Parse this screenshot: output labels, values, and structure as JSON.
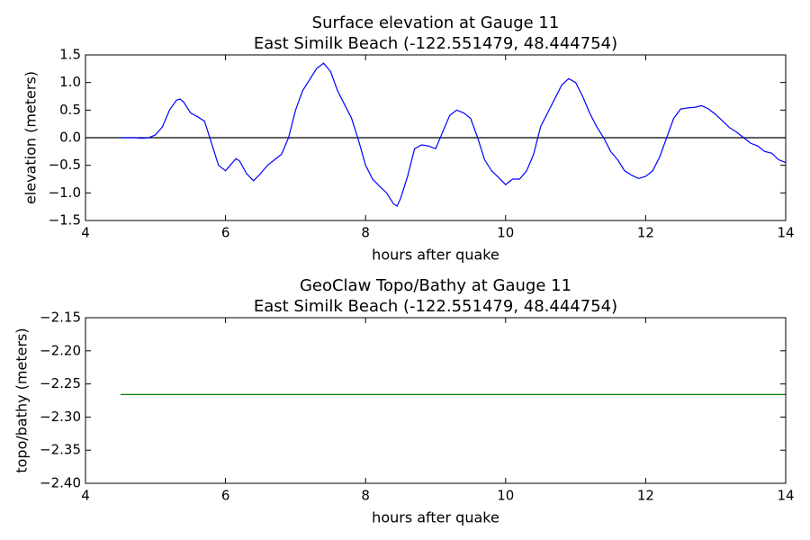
{
  "chart_data": [
    {
      "type": "line",
      "title": "Surface elevation at Gauge 11",
      "subtitle": "East Similk Beach  (-122.551479, 48.444754)",
      "xlabel": "hours after quake",
      "ylabel": "elevation (meters)",
      "color": "#0000ff",
      "hline": 0,
      "hline_color": "#000000",
      "xlim": [
        4,
        14
      ],
      "xticks": [
        4,
        6,
        8,
        10,
        12,
        14
      ],
      "ylim": [
        -1.5,
        1.5
      ],
      "yticks": [
        {
          "value": -1.5,
          "label": "−1.5"
        },
        {
          "value": -1.0,
          "label": "−1.0"
        },
        {
          "value": -0.5,
          "label": "−0.5"
        },
        {
          "value": 0,
          "label": "0.0"
        },
        0.5,
        {
          "value": 1,
          "label": "1.0"
        },
        1.5
      ],
      "x": [
        4.5,
        4.6,
        4.7,
        4.8,
        4.9,
        5.0,
        5.1,
        5.2,
        5.3,
        5.35,
        5.4,
        5.5,
        5.6,
        5.7,
        5.8,
        5.9,
        6.0,
        6.1,
        6.15,
        6.2,
        6.3,
        6.4,
        6.5,
        6.6,
        6.7,
        6.8,
        6.9,
        7.0,
        7.1,
        7.2,
        7.3,
        7.4,
        7.5,
        7.6,
        7.7,
        7.8,
        7.9,
        8.0,
        8.1,
        8.2,
        8.3,
        8.4,
        8.45,
        8.5,
        8.6,
        8.7,
        8.8,
        8.9,
        9.0,
        9.1,
        9.2,
        9.3,
        9.4,
        9.5,
        9.6,
        9.7,
        9.8,
        9.9,
        10.0,
        10.1,
        10.2,
        10.3,
        10.4,
        10.5,
        10.6,
        10.7,
        10.8,
        10.9,
        11.0,
        11.1,
        11.2,
        11.3,
        11.4,
        11.5,
        11.6,
        11.7,
        11.8,
        11.9,
        12.0,
        12.1,
        12.2,
        12.3,
        12.4,
        12.5,
        12.6,
        12.7,
        12.8,
        12.9,
        13.0,
        13.1,
        13.2,
        13.3,
        13.4,
        13.5,
        13.6,
        13.7,
        13.8,
        13.9,
        14.0
      ],
      "values": [
        0,
        0,
        0,
        -0.01,
        0,
        0.05,
        0.2,
        0.5,
        0.68,
        0.7,
        0.65,
        0.45,
        0.38,
        0.3,
        -0.1,
        -0.5,
        -0.6,
        -0.45,
        -0.38,
        -0.42,
        -0.65,
        -0.78,
        -0.65,
        -0.5,
        -0.4,
        -0.3,
        0.0,
        0.5,
        0.85,
        1.05,
        1.25,
        1.35,
        1.2,
        0.85,
        0.6,
        0.35,
        -0.05,
        -0.5,
        -0.75,
        -0.88,
        -1.0,
        -1.2,
        -1.24,
        -1.1,
        -0.7,
        -0.2,
        -0.13,
        -0.15,
        -0.2,
        0.1,
        0.4,
        0.5,
        0.45,
        0.35,
        0.0,
        -0.4,
        -0.6,
        -0.72,
        -0.85,
        -0.75,
        -0.75,
        -0.6,
        -0.3,
        0.2,
        0.45,
        0.7,
        0.95,
        1.07,
        1.0,
        0.75,
        0.45,
        0.2,
        0.0,
        -0.25,
        -0.4,
        -0.6,
        -0.68,
        -0.74,
        -0.7,
        -0.6,
        -0.35,
        0.0,
        0.35,
        0.52,
        0.54,
        0.55,
        0.58,
        0.52,
        0.42,
        0.3,
        0.18,
        0.1,
        0.0,
        -0.1,
        -0.15,
        -0.25,
        -0.28,
        -0.4,
        -0.45
      ]
    },
    {
      "type": "line",
      "title": "GeoClaw Topo/Bathy at Gauge 11",
      "subtitle": "East Similk Beach  (-122.551479, 48.444754)",
      "xlabel": "hours after quake",
      "ylabel": "topo/bathy (meters)",
      "color": "#008000",
      "xlim": [
        4,
        14
      ],
      "xticks": [
        4,
        6,
        8,
        10,
        12,
        14
      ],
      "ylim": [
        -2.4,
        -2.15
      ],
      "yticks": [
        {
          "value": -2.4,
          "label": "−2.40"
        },
        {
          "value": -2.35,
          "label": "−2.35"
        },
        {
          "value": -2.3,
          "label": "−2.30"
        },
        {
          "value": -2.25,
          "label": "−2.25"
        },
        {
          "value": -2.2,
          "label": "−2.20"
        },
        {
          "value": -2.15,
          "label": "−2.15"
        }
      ],
      "x": [
        4.5,
        14
      ],
      "values": [
        -2.266,
        -2.266
      ]
    }
  ]
}
